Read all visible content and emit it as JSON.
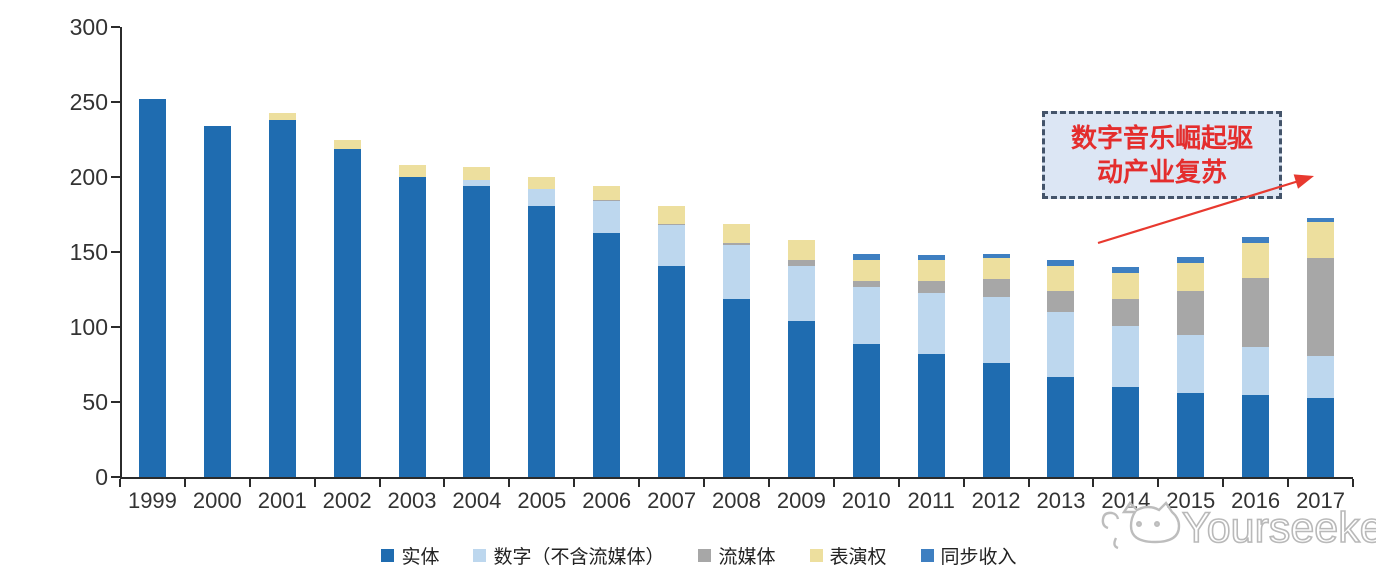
{
  "chart_data": {
    "type": "bar",
    "stacked": true,
    "title": "",
    "xlabel": "",
    "ylabel": "",
    "categories": [
      "1999",
      "2000",
      "2001",
      "2002",
      "2003",
      "2004",
      "2005",
      "2006",
      "2007",
      "2008",
      "2009",
      "2010",
      "2011",
      "2012",
      "2013",
      "2014",
      "2015",
      "2016",
      "2017"
    ],
    "series": [
      {
        "name": "实体",
        "color": "#1f6cb0",
        "values": [
          252,
          234,
          238,
          219,
          200,
          194,
          181,
          163,
          141,
          119,
          104,
          89,
          82,
          76,
          67,
          60,
          56,
          55,
          53
        ]
      },
      {
        "name": "数字（不含流媒体）",
        "color": "#bdd7ee",
        "values": [
          0,
          0,
          0,
          0,
          0,
          4,
          11,
          21,
          27,
          36,
          37,
          38,
          41,
          44,
          43,
          41,
          39,
          32,
          28
        ]
      },
      {
        "name": "流媒体",
        "color": "#a7a7a7",
        "values": [
          0,
          0,
          0,
          0,
          0,
          0,
          0,
          1,
          1,
          1,
          4,
          4,
          8,
          12,
          14,
          18,
          29,
          46,
          65
        ]
      },
      {
        "name": "表演权",
        "color": "#eddf9e",
        "values": [
          0,
          0,
          5,
          6,
          8,
          9,
          8,
          9,
          12,
          13,
          13,
          14,
          14,
          14,
          17,
          17,
          19,
          23,
          24
        ]
      },
      {
        "name": "同步收入",
        "color": "#3e7fc1",
        "values": [
          0,
          0,
          0,
          0,
          0,
          0,
          0,
          0,
          0,
          0,
          0,
          4,
          3,
          3,
          4,
          4,
          4,
          4,
          3
        ]
      }
    ],
    "ylim": [
      0,
      300
    ],
    "yticks": [
      0,
      50,
      100,
      150,
      200,
      250,
      300
    ],
    "grid": false,
    "legend_position": "bottom"
  },
  "annotation": {
    "line1": "数字音乐崛起驱",
    "line2": "动产业复苏",
    "text_color": "#e42d2d",
    "box_fill": "#dce6f4",
    "box_border": "#44546a",
    "arrow_color": "#e8392f"
  },
  "watermark": {
    "text": "Yourseeker"
  }
}
